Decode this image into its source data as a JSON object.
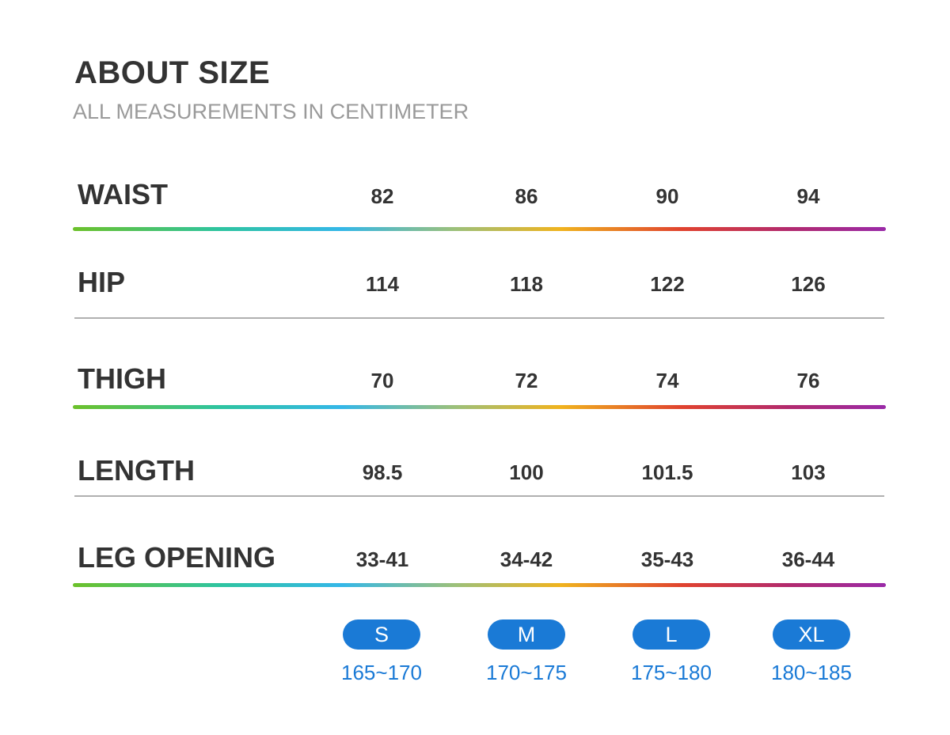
{
  "title": "ABOUT SIZE",
  "subtitle": "ALL MEASUREMENTS IN CENTIMETER",
  "rows": [
    {
      "label": "WAIST",
      "values": [
        "82",
        "86",
        "90",
        "94"
      ]
    },
    {
      "label": "HIP",
      "values": [
        "114",
        "118",
        "122",
        "126"
      ]
    },
    {
      "label": "THIGH",
      "values": [
        "70",
        "72",
        "74",
        "76"
      ]
    },
    {
      "label": "LENGTH",
      "values": [
        "98.5",
        "100",
        "101.5",
        "103"
      ]
    },
    {
      "label": "LEG OPENING",
      "values": [
        "33-41",
        "34-42",
        "35-43",
        "36-44"
      ]
    }
  ],
  "sizes": [
    {
      "label": "S",
      "height": "165~170"
    },
    {
      "label": "M",
      "height": "170~175"
    },
    {
      "label": "L",
      "height": "175~180"
    },
    {
      "label": "XL",
      "height": "180~185"
    }
  ],
  "colors": {
    "pill": "#1a7ad6",
    "text": "#333333",
    "subtitle": "#9a9a9a"
  }
}
